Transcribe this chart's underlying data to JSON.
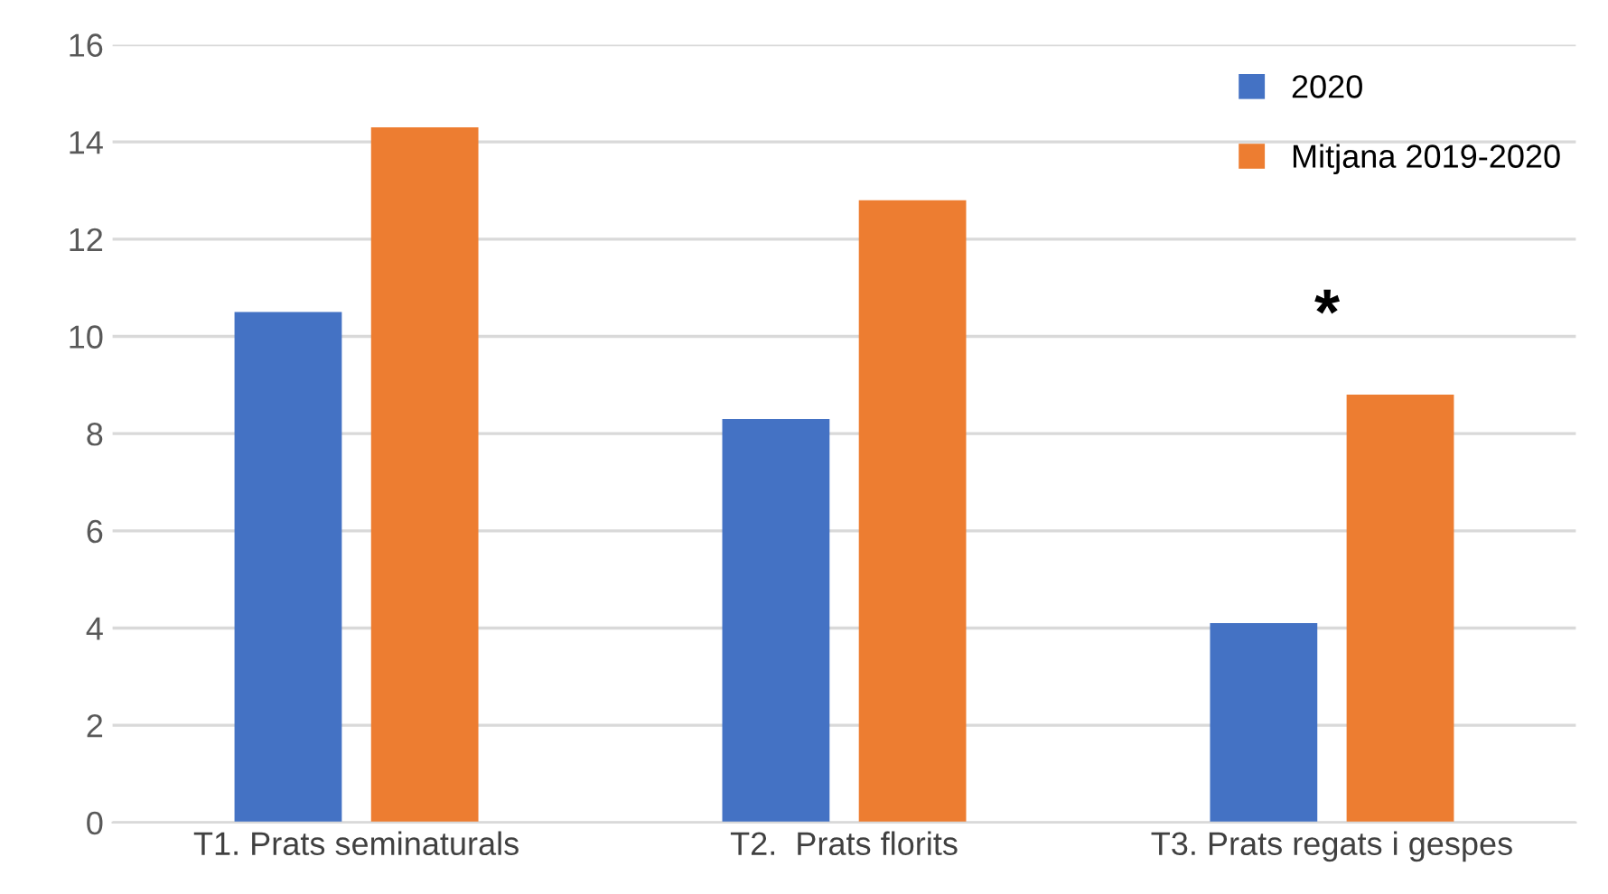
{
  "chart_data": {
    "type": "bar",
    "categories": [
      "T1. Prats seminaturals",
      "T2.  Prats florits",
      "T3. Prats regats i gespes"
    ],
    "series": [
      {
        "name": "2020",
        "color": "#4472c4",
        "values": [
          10.5,
          8.3,
          4.1
        ]
      },
      {
        "name": "Mitjana 2019-2020",
        "color": "#ed7d31",
        "values": [
          14.3,
          12.8,
          8.8
        ]
      }
    ],
    "ylim": [
      0,
      16
    ],
    "yticks": [
      0,
      2,
      4,
      6,
      8,
      10,
      12,
      14,
      16
    ],
    "grid": "y",
    "legend": "top right",
    "annotations": [
      "*"
    ]
  }
}
